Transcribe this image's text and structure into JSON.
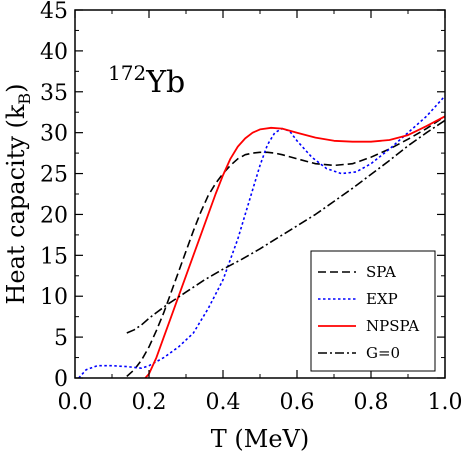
{
  "chart_data": {
    "type": "line",
    "annotation": {
      "mass_number": "172",
      "element": "Yb"
    },
    "xlabel": "T  (MeV)",
    "ylabel": {
      "main": "Heat capacity  (k",
      "subscript": "B",
      "close": ")"
    },
    "xlim": [
      0.0,
      1.0
    ],
    "ylim": [
      0,
      45
    ],
    "x_ticks": [
      0.0,
      0.2,
      0.4,
      0.6,
      0.8,
      1.0
    ],
    "x_tick_labels": [
      "0.0",
      "0.2",
      "0.4",
      "0.6",
      "0.8",
      "1.0"
    ],
    "y_ticks": [
      0,
      5,
      10,
      15,
      20,
      25,
      30,
      35,
      40,
      45
    ],
    "y_tick_labels": [
      "0",
      "5",
      "10",
      "15",
      "20",
      "25",
      "30",
      "35",
      "40",
      "45"
    ],
    "grid": false,
    "legend_position": "bottom-right",
    "series": [
      {
        "name": "SPA",
        "color": "#000000",
        "dash": "dashed",
        "points": [
          [
            0.14,
            0.2
          ],
          [
            0.16,
            1.0
          ],
          [
            0.18,
            2.2
          ],
          [
            0.2,
            3.8
          ],
          [
            0.22,
            5.8
          ],
          [
            0.24,
            8.0
          ],
          [
            0.26,
            10.5
          ],
          [
            0.28,
            13.0
          ],
          [
            0.3,
            15.5
          ],
          [
            0.32,
            18.0
          ],
          [
            0.34,
            20.3
          ],
          [
            0.36,
            22.3
          ],
          [
            0.38,
            23.8
          ],
          [
            0.4,
            25.0
          ],
          [
            0.42,
            26.0
          ],
          [
            0.44,
            26.8
          ],
          [
            0.46,
            27.3
          ],
          [
            0.48,
            27.5
          ],
          [
            0.5,
            27.6
          ],
          [
            0.52,
            27.6
          ],
          [
            0.54,
            27.5
          ],
          [
            0.56,
            27.3
          ],
          [
            0.6,
            26.8
          ],
          [
            0.65,
            26.2
          ],
          [
            0.7,
            26.0
          ],
          [
            0.75,
            26.2
          ],
          [
            0.8,
            27.0
          ],
          [
            0.85,
            28.0
          ],
          [
            0.9,
            29.2
          ],
          [
            0.95,
            30.5
          ],
          [
            1.0,
            32.0
          ]
        ]
      },
      {
        "name": "EXP",
        "color": "#0000ff",
        "dash": "dotted",
        "points": [
          [
            0.01,
            0.0
          ],
          [
            0.03,
            1.0
          ],
          [
            0.06,
            1.5
          ],
          [
            0.1,
            1.5
          ],
          [
            0.14,
            1.4
          ],
          [
            0.18,
            1.2
          ],
          [
            0.2,
            1.5
          ],
          [
            0.24,
            2.5
          ],
          [
            0.28,
            3.8
          ],
          [
            0.32,
            5.5
          ],
          [
            0.36,
            8.5
          ],
          [
            0.4,
            12.0
          ],
          [
            0.42,
            14.5
          ],
          [
            0.44,
            17.0
          ],
          [
            0.46,
            20.0
          ],
          [
            0.48,
            23.0
          ],
          [
            0.5,
            26.0
          ],
          [
            0.52,
            28.5
          ],
          [
            0.54,
            30.0
          ],
          [
            0.56,
            30.5
          ],
          [
            0.58,
            30.2
          ],
          [
            0.6,
            29.0
          ],
          [
            0.64,
            27.0
          ],
          [
            0.68,
            25.6
          ],
          [
            0.72,
            25.0
          ],
          [
            0.76,
            25.2
          ],
          [
            0.8,
            26.2
          ],
          [
            0.85,
            28.0
          ],
          [
            0.9,
            30.0
          ],
          [
            0.95,
            32.0
          ],
          [
            1.0,
            34.5
          ]
        ]
      },
      {
        "name": "NPSPA",
        "color": "#ff0000",
        "dash": "solid",
        "points": [
          [
            0.19,
            0.0
          ],
          [
            0.2,
            0.5
          ],
          [
            0.22,
            2.5
          ],
          [
            0.24,
            5.0
          ],
          [
            0.26,
            7.5
          ],
          [
            0.28,
            10.0
          ],
          [
            0.3,
            12.5
          ],
          [
            0.32,
            15.0
          ],
          [
            0.34,
            17.5
          ],
          [
            0.36,
            20.0
          ],
          [
            0.38,
            22.5
          ],
          [
            0.4,
            24.8
          ],
          [
            0.42,
            26.8
          ],
          [
            0.44,
            28.3
          ],
          [
            0.46,
            29.3
          ],
          [
            0.48,
            30.0
          ],
          [
            0.5,
            30.4
          ],
          [
            0.53,
            30.6
          ],
          [
            0.56,
            30.5
          ],
          [
            0.6,
            30.0
          ],
          [
            0.65,
            29.4
          ],
          [
            0.7,
            29.0
          ],
          [
            0.75,
            28.9
          ],
          [
            0.8,
            28.9
          ],
          [
            0.85,
            29.1
          ],
          [
            0.9,
            29.7
          ],
          [
            0.95,
            30.8
          ],
          [
            1.0,
            32.0
          ]
        ]
      },
      {
        "name": "G=0",
        "color": "#000000",
        "dash": "dashdot",
        "points": [
          [
            0.14,
            5.5
          ],
          [
            0.16,
            5.9
          ],
          [
            0.18,
            6.5
          ],
          [
            0.2,
            7.3
          ],
          [
            0.22,
            8.0
          ],
          [
            0.25,
            9.0
          ],
          [
            0.3,
            10.5
          ],
          [
            0.35,
            12.0
          ],
          [
            0.4,
            13.3
          ],
          [
            0.45,
            14.5
          ],
          [
            0.5,
            15.8
          ],
          [
            0.55,
            17.2
          ],
          [
            0.6,
            18.6
          ],
          [
            0.65,
            20.0
          ],
          [
            0.7,
            21.6
          ],
          [
            0.75,
            23.2
          ],
          [
            0.8,
            24.9
          ],
          [
            0.85,
            26.6
          ],
          [
            0.9,
            28.4
          ],
          [
            0.95,
            30.0
          ],
          [
            1.0,
            31.5
          ]
        ]
      }
    ]
  }
}
